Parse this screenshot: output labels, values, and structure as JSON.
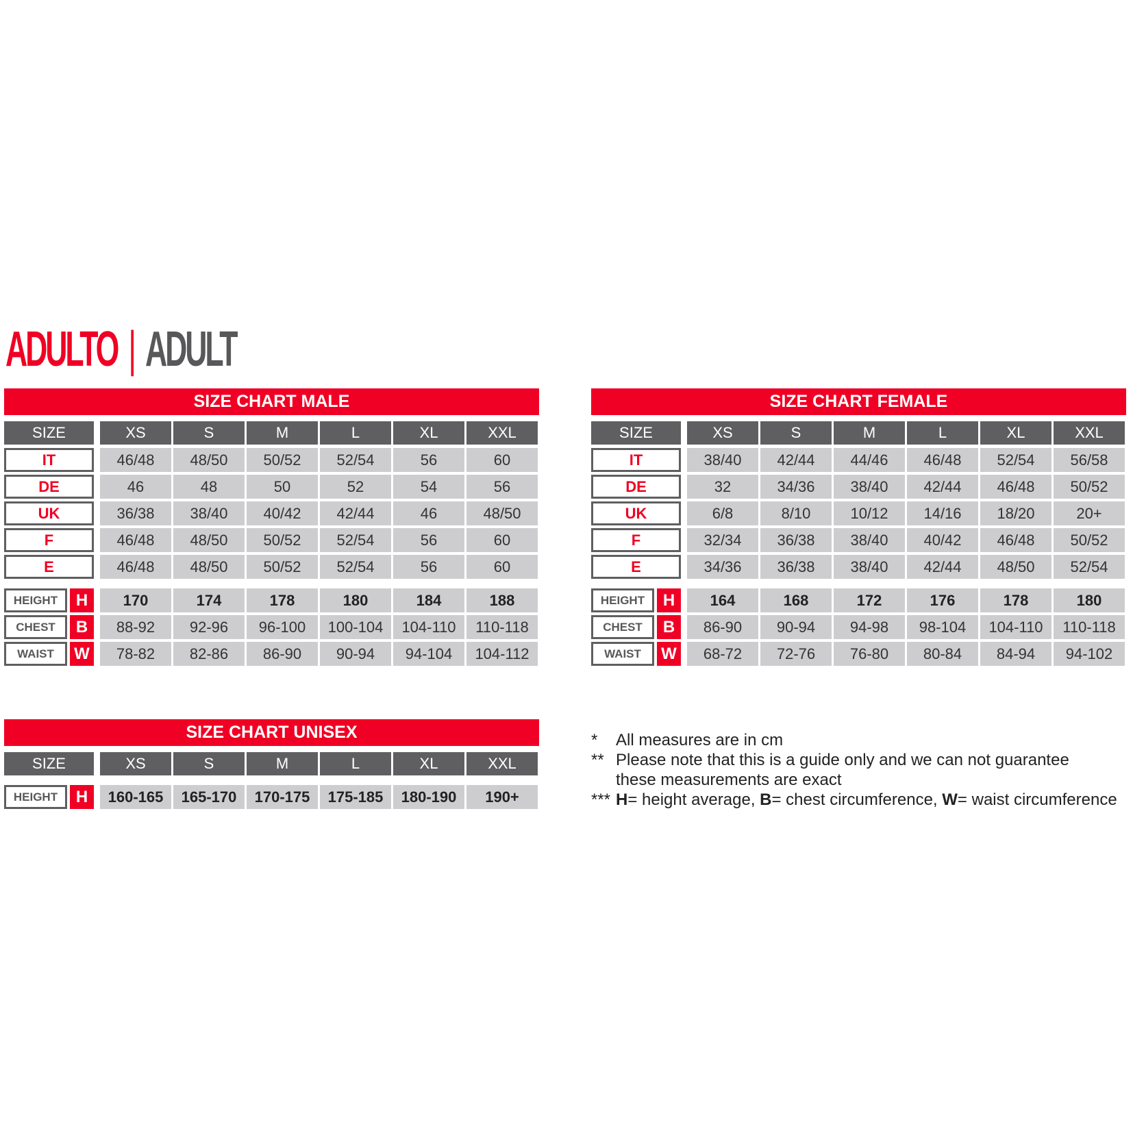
{
  "title": {
    "italian": "ADULTO",
    "separator": "|",
    "english": "ADULT"
  },
  "colors": {
    "accent_red": "#f00024",
    "header_gray": "#5f5f61",
    "cell_gray": "#cdcdcf"
  },
  "size_header": "SIZE",
  "sizes": [
    "XS",
    "S",
    "M",
    "L",
    "XL",
    "XXL"
  ],
  "male": {
    "title": "SIZE CHART MALE",
    "conversions": [
      {
        "label": "IT",
        "values": [
          "46/48",
          "48/50",
          "50/52",
          "52/54",
          "56",
          "60"
        ]
      },
      {
        "label": "DE",
        "values": [
          "46",
          "48",
          "50",
          "52",
          "54",
          "56"
        ]
      },
      {
        "label": "UK",
        "values": [
          "36/38",
          "38/40",
          "40/42",
          "42/44",
          "46",
          "48/50"
        ]
      },
      {
        "label": "F",
        "values": [
          "46/48",
          "48/50",
          "50/52",
          "52/54",
          "56",
          "60"
        ]
      },
      {
        "label": "E",
        "values": [
          "46/48",
          "48/50",
          "50/52",
          "52/54",
          "56",
          "60"
        ]
      }
    ],
    "measures": [
      {
        "label": "HEIGHT",
        "letter": "H",
        "values": [
          "170",
          "174",
          "178",
          "180",
          "184",
          "188"
        ]
      },
      {
        "label": "CHEST",
        "letter": "B",
        "values": [
          "88-92",
          "92-96",
          "96-100",
          "100-104",
          "104-110",
          "110-118"
        ]
      },
      {
        "label": "WAIST",
        "letter": "W",
        "values": [
          "78-82",
          "82-86",
          "86-90",
          "90-94",
          "94-104",
          "104-112"
        ]
      }
    ]
  },
  "female": {
    "title": "SIZE CHART FEMALE",
    "conversions": [
      {
        "label": "IT",
        "values": [
          "38/40",
          "42/44",
          "44/46",
          "46/48",
          "52/54",
          "56/58"
        ]
      },
      {
        "label": "DE",
        "values": [
          "32",
          "34/36",
          "38/40",
          "42/44",
          "46/48",
          "50/52"
        ]
      },
      {
        "label": "UK",
        "values": [
          "6/8",
          "8/10",
          "10/12",
          "14/16",
          "18/20",
          "20+"
        ]
      },
      {
        "label": "F",
        "values": [
          "32/34",
          "36/38",
          "38/40",
          "40/42",
          "46/48",
          "50/52"
        ]
      },
      {
        "label": "E",
        "values": [
          "34/36",
          "36/38",
          "38/40",
          "42/44",
          "48/50",
          "52/54"
        ]
      }
    ],
    "measures": [
      {
        "label": "HEIGHT",
        "letter": "H",
        "values": [
          "164",
          "168",
          "172",
          "176",
          "178",
          "180"
        ]
      },
      {
        "label": "CHEST",
        "letter": "B",
        "values": [
          "86-90",
          "90-94",
          "94-98",
          "98-104",
          "104-110",
          "110-118"
        ]
      },
      {
        "label": "WAIST",
        "letter": "W",
        "values": [
          "68-72",
          "72-76",
          "76-80",
          "80-84",
          "84-94",
          "94-102"
        ]
      }
    ]
  },
  "unisex": {
    "title": "SIZE CHART UNISEX",
    "conversions": [],
    "measures": [
      {
        "label": "HEIGHT",
        "letter": "H",
        "values": [
          "160-165",
          "165-170",
          "170-175",
          "175-185",
          "180-190",
          "190+"
        ]
      }
    ]
  },
  "notes": [
    {
      "marker": "*",
      "text": "All measures are in cm"
    },
    {
      "marker": "**",
      "text": "Please note that this is a guide only and we can not guarantee"
    },
    {
      "marker": "",
      "text": "these measurements are exact"
    },
    {
      "marker": "***",
      "parts": [
        {
          "b": "H",
          "t": "= height average, "
        },
        {
          "b": "B",
          "t": "= chest circumference, "
        },
        {
          "b": "W",
          "t": "= waist circumference"
        }
      ]
    }
  ]
}
